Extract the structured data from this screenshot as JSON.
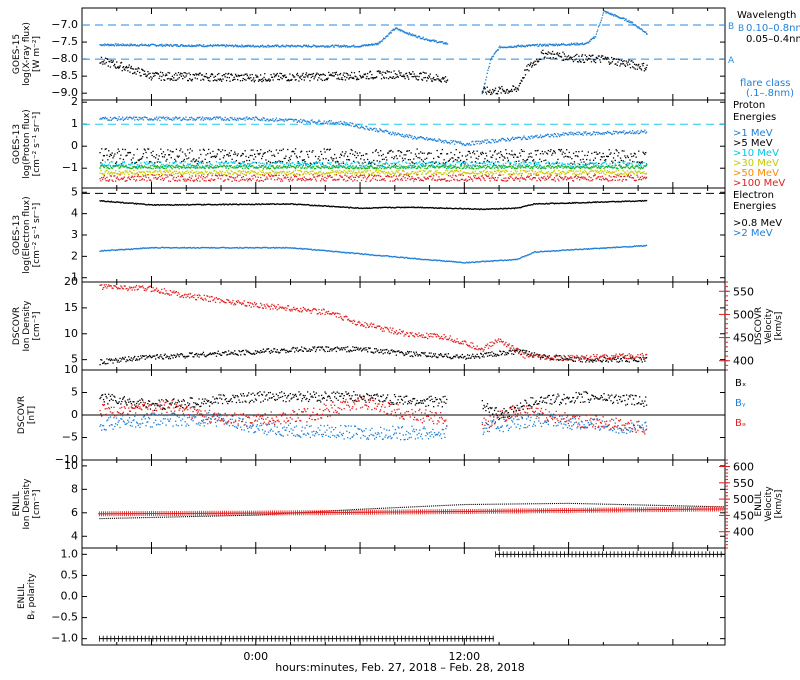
{
  "xlabel": "hours:minutes, Feb. 27, 2018 – Feb. 28, 2018",
  "x_ticks": [
    {
      "t": 0,
      "label": "0:00"
    },
    {
      "t": 12,
      "label": "12:00"
    }
  ],
  "colors": {
    "black": "#000000",
    "blue": "#1f7fd6",
    "red": "#e02020",
    "cyan": "#00c8e8",
    "green": "#1eb01e",
    "yellow": "#c8c800",
    "orange": "#ff8a00",
    "dash_blue": "#2a8ae0",
    "dash_cyan": "#22c8f0"
  },
  "chart_data": [
    {
      "id": "xray",
      "type": "line",
      "ylabel": [
        "GOES-15",
        "log(X-ray flux)",
        "[W m⁻²]"
      ],
      "ylim": [
        -9.2,
        -6.5
      ],
      "yticks": [
        {
          "v": -7.0,
          "label": "−7.0"
        },
        {
          "v": -7.5,
          "label": "−7.5"
        },
        {
          "v": -8.0,
          "label": "−8.0"
        },
        {
          "v": -8.5,
          "label": "−8.5"
        },
        {
          "v": -9.0,
          "label": "−9.0"
        }
      ],
      "ref_lines": [
        {
          "v": -7.0,
          "label": "B"
        },
        {
          "v": -8.0,
          "label": "A"
        }
      ],
      "legend_title": "Wavelength",
      "legend_note": [
        "flare class",
        "(.1–.8nm)"
      ],
      "series": [
        {
          "name": "0.10–0.8nm",
          "color": "blue",
          "noise": 0.03,
          "segments": [
            [
              [
                -9,
                -7.58
              ],
              [
                0,
                -7.62
              ],
              [
                6,
                -7.62
              ],
              [
                7,
                -7.55
              ],
              [
                8,
                -7.1
              ],
              [
                9,
                -7.3
              ],
              [
                10,
                -7.45
              ],
              [
                11,
                -7.55
              ]
            ],
            [
              [
                13,
                -9.0
              ],
              [
                13.5,
                -8.0
              ],
              [
                14,
                -7.65
              ],
              [
                16,
                -7.6
              ],
              [
                19,
                -7.55
              ],
              [
                19.5,
                -7.35
              ],
              [
                20,
                -6.6
              ],
              [
                21.5,
                -6.9
              ],
              [
                22.5,
                -7.25
              ]
            ]
          ]
        },
        {
          "name": "0.05–0.4nm",
          "color": "black",
          "noise": 0.12,
          "segments": [
            [
              [
                -9,
                -8.05
              ],
              [
                -7.5,
                -8.25
              ],
              [
                -6,
                -8.5
              ],
              [
                0,
                -8.55
              ],
              [
                5,
                -8.5
              ],
              [
                8,
                -8.45
              ],
              [
                9.5,
                -8.5
              ],
              [
                11,
                -8.6
              ]
            ],
            [
              [
                13,
                -8.95
              ],
              [
                15,
                -8.9
              ],
              [
                15.5,
                -8.35
              ],
              [
                16.5,
                -7.85
              ],
              [
                19,
                -8.0
              ],
              [
                20,
                -8.0
              ],
              [
                21,
                -8.1
              ],
              [
                22.5,
                -8.25
              ]
            ]
          ]
        }
      ]
    },
    {
      "id": "proton",
      "type": "scatter",
      "ylabel": [
        "GOES-13",
        "log(Proton flux)",
        "[cm⁻² s⁻¹ sr⁻¹]"
      ],
      "ylim": [
        -1.9,
        2.1
      ],
      "yticks": [
        {
          "v": 2,
          "label": "2"
        },
        {
          "v": 1,
          "label": "1"
        },
        {
          "v": 0,
          "label": "0"
        },
        {
          "v": -1,
          "label": "−1"
        }
      ],
      "ref_lines": [
        {
          "v": 1.0,
          "label": ""
        }
      ],
      "legend_title": [
        "Proton",
        "Energies"
      ],
      "series": [
        {
          "name": ">1 MeV",
          "color": "blue",
          "noise": 0.08,
          "segments": [
            [
              [
                -9,
                1.25
              ],
              [
                0,
                1.25
              ],
              [
                5,
                1.05
              ],
              [
                9,
                0.4
              ],
              [
                12,
                0.1
              ],
              [
                15,
                0.35
              ],
              [
                18,
                0.55
              ],
              [
                22.5,
                0.65
              ]
            ]
          ]
        },
        {
          "name": ">5 MeV",
          "color": "black",
          "noise": 0.35,
          "segments": [
            [
              [
                -9,
                -0.45
              ],
              [
                22.5,
                -0.5
              ]
            ]
          ]
        },
        {
          "name": ">10 MeV",
          "color": "cyan",
          "noise": 0.15,
          "segments": [
            [
              [
                -9,
                -0.85
              ],
              [
                22.5,
                -0.85
              ]
            ]
          ]
        },
        {
          "name": ">30 MeV",
          "color": "green",
          "noise": 0.08,
          "segments": [
            [
              [
                -9,
                -0.95
              ],
              [
                22.5,
                -0.95
              ]
            ]
          ]
        },
        {
          "name": ">50 MeV",
          "color": "yellow",
          "noise": 0.1,
          "segments": [
            [
              [
                -9,
                -1.2
              ],
              [
                22.5,
                -1.2
              ]
            ]
          ]
        },
        {
          "name": ">100 MeV",
          "color": "red",
          "noise": 0.15,
          "segments": [
            [
              [
                -9,
                -1.45
              ],
              [
                22.5,
                -1.45
              ]
            ]
          ]
        }
      ]
    },
    {
      "id": "electron",
      "type": "line",
      "ylabel": [
        "GOES-13",
        "log(Electron flux)",
        "[cm⁻² s⁻¹ sr⁻¹]"
      ],
      "ylim": [
        0.8,
        5.2
      ],
      "yticks": [
        {
          "v": 5,
          "label": "5"
        },
        {
          "v": 4,
          "label": "4"
        },
        {
          "v": 3,
          "label": "3"
        },
        {
          "v": 2,
          "label": "2"
        },
        {
          "v": 1,
          "label": "1"
        }
      ],
      "ref_lines": [
        {
          "v": 4.95,
          "label": ""
        }
      ],
      "legend_title": [
        "Electron",
        "Energies"
      ],
      "series": [
        {
          "name": ">0.8 MeV",
          "color": "black",
          "noise": 0.02,
          "segments": [
            [
              [
                -9,
                4.6
              ],
              [
                -6,
                4.4
              ],
              [
                2,
                4.45
              ],
              [
                6,
                4.25
              ],
              [
                9,
                4.3
              ],
              [
                13,
                4.2
              ],
              [
                15,
                4.25
              ],
              [
                16,
                4.45
              ],
              [
                22.5,
                4.6
              ]
            ]
          ]
        },
        {
          "name": ">2 MeV",
          "color": "blue",
          "noise": 0.02,
          "segments": [
            [
              [
                -9,
                2.25
              ],
              [
                -6,
                2.4
              ],
              [
                2,
                2.4
              ],
              [
                9,
                1.9
              ],
              [
                12,
                1.7
              ],
              [
                15,
                1.85
              ],
              [
                16,
                2.2
              ],
              [
                22.5,
                2.5
              ]
            ]
          ]
        }
      ]
    },
    {
      "id": "dscovr_plasma",
      "type": "scatter",
      "ylabel": [
        "DSCOVR",
        "Ion Density",
        "[cm⁻³]"
      ],
      "ylim": [
        3,
        20
      ],
      "yticks": [
        {
          "v": 20,
          "label": "20"
        },
        {
          "v": 15,
          "label": "15"
        },
        {
          "v": 10,
          "label": "10"
        },
        {
          "v": 5,
          "label": "5"
        }
      ],
      "y2label": [
        "DSCOVR",
        "Velocity",
        "[km/s]"
      ],
      "y2lim": [
        380,
        570
      ],
      "y2ticks": [
        {
          "v": 550,
          "label": "550"
        },
        {
          "v": 500,
          "label": "500"
        },
        {
          "v": 450,
          "label": "450"
        },
        {
          "v": 400,
          "label": "400"
        }
      ],
      "series": [
        {
          "name": "density",
          "axis": "left",
          "color": "black",
          "noise": 0.5,
          "segments": [
            [
              [
                -9,
                4.5
              ],
              [
                -6,
                5.5
              ],
              [
                0,
                6.5
              ],
              [
                3,
                7.0
              ],
              [
                6,
                7.0
              ],
              [
                9,
                6.0
              ],
              [
                12,
                5.5
              ],
              [
                15,
                6.5
              ],
              [
                18,
                5.0
              ],
              [
                22.5,
                5.0
              ]
            ]
          ]
        },
        {
          "name": "velocity",
          "axis": "right",
          "color": "red",
          "noise": 6,
          "segments": [
            [
              [
                -9,
                560
              ],
              [
                -6,
                555
              ],
              [
                -4,
                540
              ],
              [
                0,
                520
              ],
              [
                4,
                505
              ],
              [
                6,
                480
              ],
              [
                9,
                455
              ],
              [
                11,
                450
              ],
              [
                13,
                425
              ],
              [
                14,
                445
              ],
              [
                15.5,
                410
              ],
              [
                17,
                405
              ],
              [
                22.5,
                410
              ]
            ]
          ]
        }
      ]
    },
    {
      "id": "dscovr_mag",
      "type": "scatter",
      "ylabel": [
        "DSCOVR",
        "[nT]"
      ],
      "ylim": [
        -10,
        10
      ],
      "yticks": [
        {
          "v": 10,
          "label": "10"
        },
        {
          "v": 5,
          "label": "5"
        },
        {
          "v": 0,
          "label": "0"
        },
        {
          "v": -5,
          "label": "−5"
        },
        {
          "v": -10,
          "label": "−10"
        }
      ],
      "zero_line": true,
      "series": [
        {
          "name": "Bx",
          "color": "black",
          "noise": 1.2,
          "segments": [
            [
              [
                -9,
                4
              ],
              [
                -6,
                2
              ],
              [
                -3,
                3
              ],
              [
                0,
                4
              ],
              [
                6,
                4
              ],
              [
                9,
                3
              ],
              [
                11,
                3
              ]
            ],
            [
              [
                13,
                2
              ],
              [
                14,
                0
              ],
              [
                16,
                3
              ],
              [
                19,
                4
              ],
              [
                22.5,
                3
              ]
            ]
          ]
        },
        {
          "name": "By",
          "color": "blue",
          "noise": 1.5,
          "segments": [
            [
              [
                -9,
                -2
              ],
              [
                -5,
                -1
              ],
              [
                -2,
                -1
              ],
              [
                0,
                -3
              ],
              [
                6,
                -4
              ],
              [
                9,
                -4
              ],
              [
                11,
                -4
              ]
            ],
            [
              [
                13,
                -3
              ],
              [
                16,
                -1
              ],
              [
                19,
                -2
              ],
              [
                22.5,
                -3
              ]
            ]
          ]
        },
        {
          "name": "Bz",
          "color": "red",
          "noise": 1.5,
          "segments": [
            [
              [
                -9,
                1
              ],
              [
                -5,
                2
              ],
              [
                -2,
                -1
              ],
              [
                0,
                -1
              ],
              [
                3,
                0
              ],
              [
                6,
                3
              ],
              [
                9,
                0
              ],
              [
                11,
                -1
              ]
            ],
            [
              [
                13,
                -2
              ],
              [
                15,
                1
              ],
              [
                18,
                -1
              ],
              [
                22.5,
                -3
              ]
            ]
          ]
        }
      ]
    },
    {
      "id": "enlil_plasma",
      "type": "line",
      "ylabel": [
        "ENLIL",
        "Ion Density",
        "[cm⁻³]"
      ],
      "ylim": [
        3,
        10.5
      ],
      "yticks": [
        {
          "v": 10,
          "label": "10"
        },
        {
          "v": 8,
          "label": "8"
        },
        {
          "v": 6,
          "label": "6"
        },
        {
          "v": 4,
          "label": "4"
        }
      ],
      "y2label": [
        "ENLIL",
        "Velocity",
        "[km/s]"
      ],
      "y2lim": [
        350,
        620
      ],
      "y2ticks": [
        {
          "v": 600,
          "label": "600"
        },
        {
          "v": 550,
          "label": "550"
        },
        {
          "v": 500,
          "label": "500"
        },
        {
          "v": 450,
          "label": "450"
        },
        {
          "v": 400,
          "label": "400"
        }
      ],
      "series": [
        {
          "name": "density",
          "axis": "left",
          "color": "black",
          "noise": 0,
          "segments": [
            [
              [
                -9,
                5.5
              ],
              [
                0,
                5.8
              ],
              [
                6,
                6.3
              ],
              [
                12,
                6.7
              ],
              [
                18,
                6.8
              ],
              [
                27,
                6.5
              ]
            ]
          ]
        },
        {
          "name": "velocity",
          "axis": "right",
          "color": "red",
          "noise": 0,
          "segments": [
            [
              [
                -9,
                455
              ],
              [
                0,
                457
              ],
              [
                12,
                462
              ],
              [
                27,
                470
              ]
            ]
          ]
        }
      ]
    },
    {
      "id": "enlil_by",
      "type": "line",
      "ylabel": [
        "ENLIL",
        "Bᵧ polarity"
      ],
      "ylim": [
        -1.15,
        1.15
      ],
      "yticks": [
        {
          "v": 1.0,
          "label": "1.0"
        },
        {
          "v": 0.5,
          "label": "0.5"
        },
        {
          "v": 0.0,
          "label": "0.0"
        },
        {
          "v": -0.5,
          "label": "−0.5"
        },
        {
          "v": -1.0,
          "label": "−1.0"
        }
      ],
      "series": [
        {
          "name": "polarity",
          "color": "black",
          "noise": 0,
          "segments": [
            [
              [
                -9,
                -1
              ],
              [
                13.7,
                -1
              ]
            ],
            [
              [
                13.8,
                1
              ],
              [
                27,
                1
              ]
            ]
          ]
        }
      ]
    }
  ],
  "legends": {
    "xray": [
      "0.10–0.8nm",
      "0.05–0.4nm"
    ],
    "proton": [
      ">1 MeV",
      ">5 MeV",
      ">10 MeV",
      ">30 MeV",
      ">50 MeV",
      ">100 MeV"
    ],
    "electron": [
      ">0.8 MeV",
      ">2 MeV"
    ],
    "mag": [
      "Bₓ",
      "Bᵧ",
      "Bₔ"
    ]
  }
}
